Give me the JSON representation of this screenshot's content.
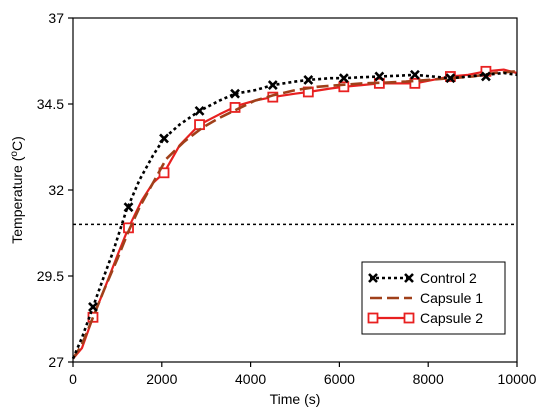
{
  "chart_data": {
    "type": "line",
    "xlabel": "Time (s)",
    "ylabel": "Temperature (°C)",
    "ylabel_parts": {
      "main": "Temperature (",
      "sup": "o",
      "unit": "C)"
    },
    "xlim": [
      0,
      10000
    ],
    "ylim": [
      27,
      37
    ],
    "x_ticks": [
      "0",
      "2000",
      "4000",
      "6000",
      "8000",
      "10000"
    ],
    "y_ticks": [
      "27",
      "29.5",
      "32",
      "34.5",
      "37"
    ],
    "reference_line": {
      "y": 31,
      "style": "dotted",
      "color": "#000000"
    },
    "legend_position": "bottom-right",
    "grid": false,
    "series": [
      {
        "name": "Control 2",
        "color": "#000000",
        "line_style": "dotted",
        "marker": "x",
        "x": [
          0,
          200,
          450,
          700,
          900,
          1200,
          1500,
          1800,
          2050,
          2400,
          2850,
          3300,
          3650,
          4100,
          4500,
          5000,
          5300,
          5800,
          6100,
          6500,
          6900,
          7300,
          7700,
          8100,
          8500,
          8900,
          9300,
          9700,
          10000
        ],
        "y": [
          27.1,
          27.7,
          28.6,
          29.5,
          30.2,
          31.4,
          32.3,
          33.0,
          33.5,
          33.9,
          34.3,
          34.6,
          34.8,
          34.9,
          35.05,
          35.15,
          35.2,
          35.25,
          35.25,
          35.28,
          35.3,
          35.32,
          35.35,
          35.3,
          35.25,
          35.3,
          35.35,
          35.4,
          35.35
        ],
        "marker_x": [
          450,
          1250,
          2050,
          2850,
          3650,
          4500,
          5300,
          6100,
          6900,
          7700,
          8500,
          9300
        ],
        "marker_y": [
          28.6,
          31.5,
          33.5,
          34.3,
          34.8,
          35.05,
          35.2,
          35.25,
          35.3,
          35.35,
          35.25,
          35.3
        ]
      },
      {
        "name": "Capsule 1",
        "color": "#a0401a",
        "line_style": "dashed",
        "marker": "none",
        "x": [
          0,
          200,
          450,
          700,
          1000,
          1250,
          1500,
          1800,
          2100,
          2500,
          2900,
          3300,
          3700,
          4100,
          4500,
          5000,
          5500,
          6000,
          6500,
          7000,
          7500,
          8000,
          8500,
          9000,
          9500,
          10000
        ],
        "y": [
          27.1,
          27.5,
          28.3,
          29.1,
          30.0,
          30.8,
          31.5,
          32.2,
          32.9,
          33.4,
          33.8,
          34.1,
          34.35,
          34.6,
          34.75,
          34.9,
          35.0,
          35.05,
          35.1,
          35.12,
          35.15,
          35.2,
          35.25,
          35.3,
          35.4,
          35.45
        ]
      },
      {
        "name": "Capsule 2",
        "color": "#e82020",
        "line_style": "solid",
        "marker": "square",
        "x": [
          0,
          200,
          450,
          700,
          1000,
          1250,
          1550,
          1800,
          2050,
          2400,
          2850,
          3300,
          3700,
          4100,
          4500,
          5000,
          5300,
          5800,
          6100,
          6500,
          6900,
          7300,
          7700,
          8100,
          8500,
          8900,
          9300,
          9700,
          10000
        ],
        "y": [
          27.1,
          27.4,
          28.3,
          29.1,
          30.1,
          30.9,
          31.7,
          32.2,
          32.5,
          33.3,
          33.9,
          34.2,
          34.45,
          34.6,
          34.7,
          34.8,
          34.85,
          34.95,
          35.0,
          35.05,
          35.1,
          35.1,
          35.1,
          35.2,
          35.3,
          35.35,
          35.45,
          35.5,
          35.4
        ],
        "marker_x": [
          450,
          1250,
          2050,
          2850,
          3650,
          4500,
          5300,
          6100,
          6900,
          7700,
          8500,
          9300
        ],
        "marker_y": [
          28.3,
          30.9,
          32.5,
          33.9,
          34.4,
          34.7,
          34.85,
          35.0,
          35.1,
          35.1,
          35.3,
          35.45
        ]
      }
    ]
  }
}
